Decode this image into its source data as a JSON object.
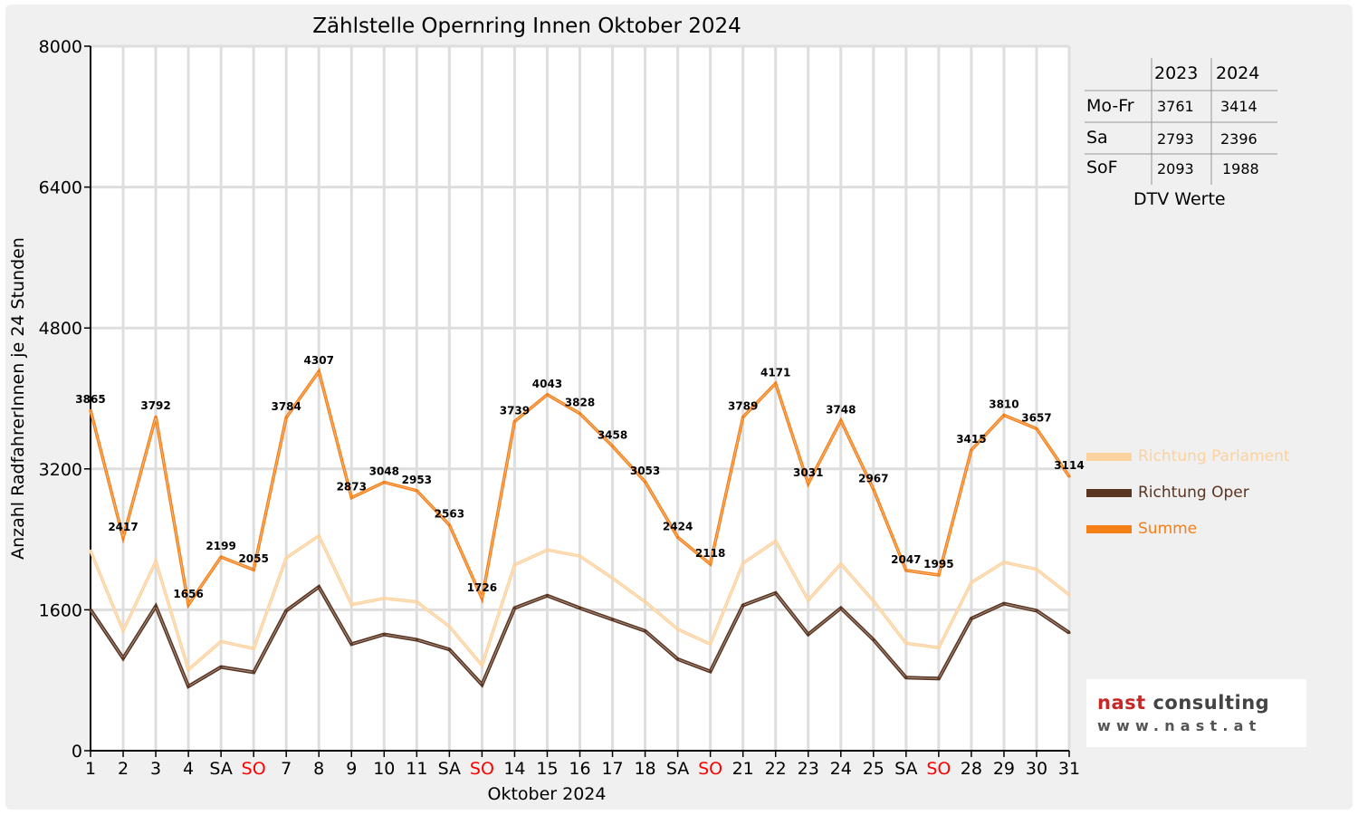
{
  "chart_data": {
    "type": "line",
    "title": "Zählstelle Opernring Innen Oktober 2024",
    "xlabel": "Oktober 2024",
    "ylabel": "Anzahl RadfahrerInnen je 24 Stunden",
    "ylim": [
      0,
      8000
    ],
    "yticks": [
      0,
      1600,
      3200,
      4800,
      6400,
      8000
    ],
    "grid": true,
    "legend_position": "right",
    "categories": [
      "1",
      "2",
      "3",
      "4",
      "SA",
      "SO",
      "7",
      "8",
      "9",
      "10",
      "11",
      "SA",
      "SO",
      "14",
      "15",
      "16",
      "17",
      "18",
      "SA",
      "SO",
      "21",
      "22",
      "23",
      "24",
      "25",
      "SA",
      "SO",
      "28",
      "29",
      "30",
      "31"
    ],
    "weekend_flags": [
      0,
      0,
      0,
      0,
      0,
      1,
      0,
      0,
      0,
      0,
      0,
      0,
      1,
      0,
      0,
      0,
      0,
      0,
      0,
      1,
      0,
      0,
      0,
      0,
      0,
      0,
      1,
      0,
      0,
      0,
      0
    ],
    "series": [
      {
        "name": "Richtung Parlament",
        "color": "#fcd29e",
        "values": [
          2270,
          1360,
          2150,
          920,
          1240,
          1160,
          2190,
          2440,
          1660,
          1730,
          1690,
          1410,
          970,
          2110,
          2280,
          2210,
          1960,
          1690,
          1380,
          1210,
          2130,
          2380,
          1710,
          2120,
          1700,
          1220,
          1170,
          1910,
          2140,
          2060,
          1770
        ]
      },
      {
        "name": "Richtung Oper",
        "color": "#5a3521",
        "values": [
          1600,
          1050,
          1640,
          730,
          950,
          890,
          1590,
          1860,
          1210,
          1320,
          1260,
          1150,
          750,
          1620,
          1760,
          1620,
          1490,
          1360,
          1040,
          900,
          1650,
          1790,
          1320,
          1620,
          1260,
          830,
          820,
          1500,
          1670,
          1590,
          1340
        ]
      },
      {
        "name": "Summe",
        "color": "#f57f17",
        "values": [
          3865,
          2417,
          3792,
          1656,
          2199,
          2055,
          3784,
          4307,
          2873,
          3048,
          2953,
          2563,
          1726,
          3739,
          4043,
          3828,
          3458,
          3053,
          2424,
          2118,
          3789,
          4171,
          3031,
          3748,
          2967,
          2047,
          1995,
          3415,
          3810,
          3657,
          3114
        ]
      }
    ],
    "data_labels": [
      "3865",
      "2417",
      "3792",
      "1656",
      "2199",
      "2055",
      "3784",
      "4307",
      "2873",
      "3048",
      "2953",
      "2563",
      "1726",
      "3739",
      "4043",
      "3828",
      "3458",
      "3053",
      "2424",
      "2118",
      "3789",
      "4171",
      "3031",
      "3748",
      "2967",
      "2047",
      "1995",
      "3415",
      "3810",
      "3657",
      "3114"
    ],
    "weekend_label_color": "#ff0000"
  },
  "dtv_table": {
    "headers": [
      "2023",
      "2024"
    ],
    "rows": [
      {
        "label": "Mo-Fr",
        "v2023": "3761",
        "v2024": "3414"
      },
      {
        "label": "Sa",
        "v2023": "2793",
        "v2024": "2396"
      },
      {
        "label": "SoF",
        "v2023": "2093",
        "v2024": "1988"
      }
    ],
    "caption": "DTV Werte"
  },
  "legend": {
    "items": [
      {
        "label": "Richtung Parlament",
        "color": "#fcd29e"
      },
      {
        "label": "Richtung Oper",
        "color": "#5a3521"
      },
      {
        "label": "Summe",
        "color": "#f57f17"
      }
    ]
  },
  "logo": {
    "brand_part1": "nast",
    "brand_part2": "consulting",
    "url": "www.nast.at",
    "color_part1": "#c62828",
    "color_part2": "#444444"
  }
}
